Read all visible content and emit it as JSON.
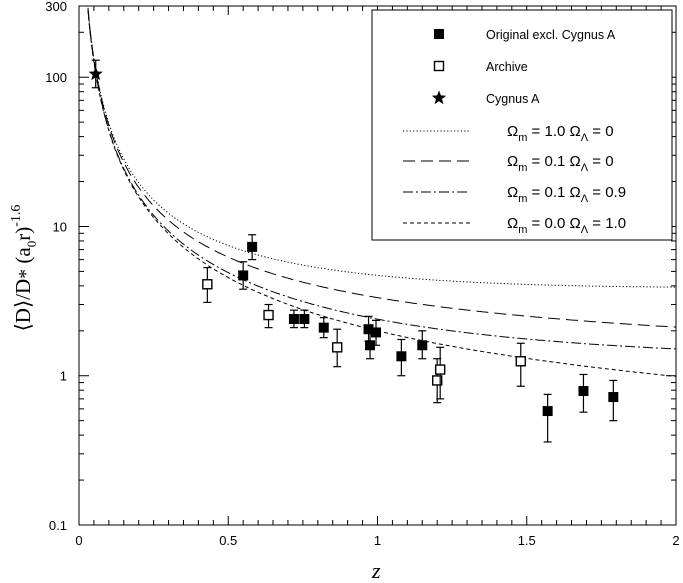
{
  "chart_data": {
    "type": "scatter",
    "xlabel": "z",
    "ylabel": "⟨D⟩/D* (a₀r)⁻¹·⁶",
    "ylabel_parts": {
      "main": "⟨D⟩/D",
      "star": "*",
      "paren": " (a",
      "sub0": "0",
      "r": "r)",
      "exp": "-1.6"
    },
    "xlim": [
      0,
      2
    ],
    "ylim": [
      0.1,
      300
    ],
    "yscale": "log",
    "x_ticks": [
      "0",
      "0.5",
      "1",
      "1.5",
      "2"
    ],
    "y_ticks": [
      "0.1",
      "1",
      "10",
      "100",
      "300"
    ],
    "x_tick_values": [
      0,
      0.5,
      1,
      1.5,
      2
    ],
    "y_tick_values": [
      0.1,
      1,
      10,
      100,
      300
    ],
    "legend_position": "top-right",
    "series": [
      {
        "name": "Original excl. Cygnus A",
        "marker": "filled-square",
        "points": [
          {
            "x": 0.55,
            "y": 4.7,
            "lo": 3.8,
            "hi": 5.8
          },
          {
            "x": 0.58,
            "y": 7.3,
            "lo": 6.0,
            "hi": 8.8
          },
          {
            "x": 0.72,
            "y": 2.4,
            "lo": 2.1,
            "hi": 2.75
          },
          {
            "x": 0.755,
            "y": 2.4,
            "lo": 2.1,
            "hi": 2.75
          },
          {
            "x": 0.82,
            "y": 2.1,
            "lo": 1.8,
            "hi": 2.45
          },
          {
            "x": 0.97,
            "y": 2.05,
            "lo": 1.7,
            "hi": 2.5
          },
          {
            "x": 0.975,
            "y": 1.6,
            "lo": 1.3,
            "hi": 1.95
          },
          {
            "x": 0.995,
            "y": 1.95,
            "lo": 1.6,
            "hi": 2.35
          },
          {
            "x": 1.08,
            "y": 1.35,
            "lo": 1.0,
            "hi": 1.75
          },
          {
            "x": 1.15,
            "y": 1.6,
            "lo": 1.3,
            "hi": 2.0
          },
          {
            "x": 1.57,
            "y": 0.58,
            "lo": 0.36,
            "hi": 0.75
          },
          {
            "x": 1.69,
            "y": 0.79,
            "lo": 0.57,
            "hi": 1.02
          },
          {
            "x": 1.79,
            "y": 0.72,
            "lo": 0.5,
            "hi": 0.93
          }
        ]
      },
      {
        "name": "Archive",
        "marker": "open-square",
        "points": [
          {
            "x": 0.43,
            "y": 4.1,
            "lo": 3.1,
            "hi": 5.3
          },
          {
            "x": 0.635,
            "y": 2.55,
            "lo": 2.1,
            "hi": 3.0
          },
          {
            "x": 0.865,
            "y": 1.55,
            "lo": 1.15,
            "hi": 2.05
          },
          {
            "x": 1.2,
            "y": 0.93,
            "lo": 0.66,
            "hi": 1.3
          },
          {
            "x": 1.21,
            "y": 1.1,
            "lo": 0.7,
            "hi": 1.55
          },
          {
            "x": 1.48,
            "y": 1.25,
            "lo": 0.85,
            "hi": 1.65
          }
        ]
      },
      {
        "name": "Cygnus A",
        "marker": "star",
        "points": [
          {
            "x": 0.056,
            "y": 105,
            "lo": 85,
            "hi": 130
          }
        ]
      }
    ],
    "curves": [
      {
        "legend_left": "Ω",
        "left_sub": "m",
        "left_val": " = 1.0",
        "right": "Ω",
        "right_sub": "Λ",
        "right_val": " = 0",
        "om": 1.0,
        "ol": 0.0,
        "dash": "1.2,2.2"
      },
      {
        "legend_left": "Ω",
        "left_sub": "m",
        "left_val": " = 0.1",
        "right": "Ω",
        "right_sub": "Λ",
        "right_val": " = 0",
        "om": 0.1,
        "ol": 0.0,
        "dash": "12,6"
      },
      {
        "legend_left": "Ω",
        "left_sub": "m",
        "left_val": " = 0.1",
        "right": "Ω",
        "right_sub": "Λ",
        "right_val": " = 0.9",
        "om": 0.1,
        "ol": 0.9,
        "dash": "10,3,2,3"
      },
      {
        "legend_left": "Ω",
        "left_sub": "m",
        "left_val": " = 0.0",
        "right": "Ω",
        "right_sub": "Λ",
        "right_val": " = 1.0",
        "om": 0.0,
        "ol": 1.0,
        "dash": "4,3"
      }
    ]
  }
}
